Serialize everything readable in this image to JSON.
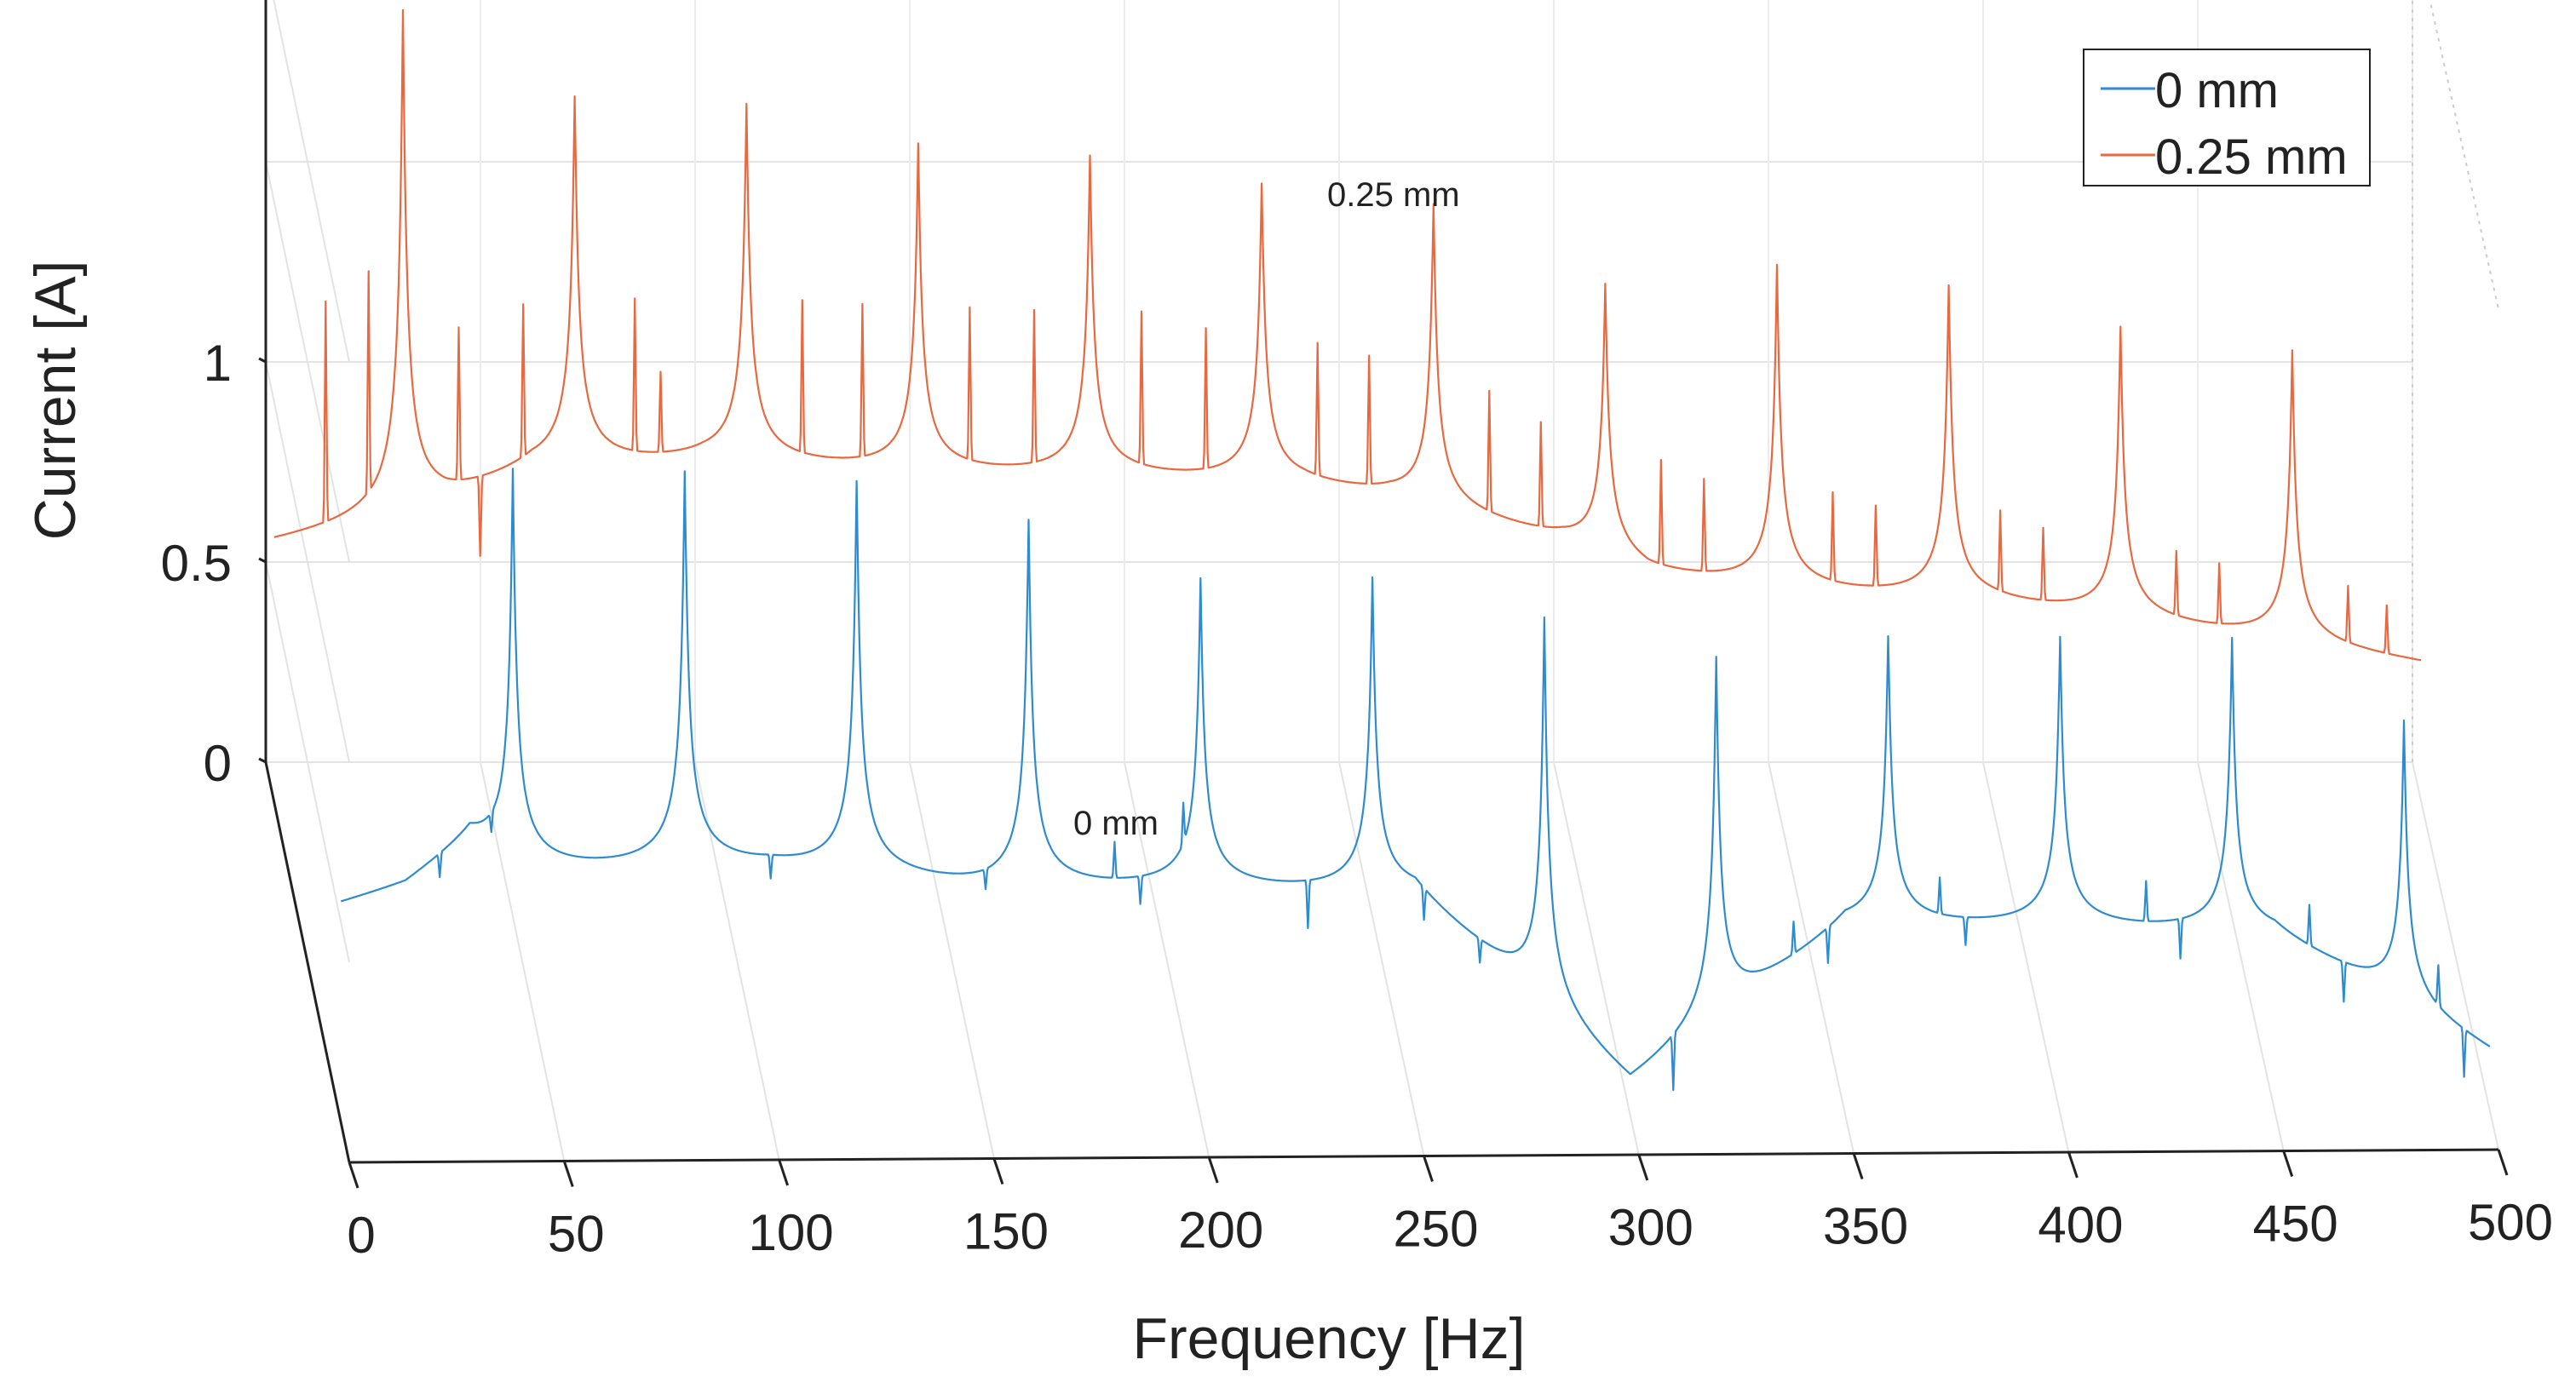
{
  "chart_data": {
    "type": "line",
    "view": "3d-waterfall",
    "title": "",
    "xlabel": "Frequency [Hz]",
    "ylabel": "Current [A]",
    "xlim": [
      0,
      500
    ],
    "x_ticks": [
      "0",
      "50",
      "100",
      "150",
      "200",
      "250",
      "300",
      "350",
      "400",
      "450",
      "500"
    ],
    "y_ticks": [
      "0",
      "0.5",
      "1"
    ],
    "y_ticks_top": {
      "base": "10",
      "exp": "0"
    },
    "legend": {
      "position": "top-right",
      "entries": [
        "0 mm",
        "0.25 mm"
      ]
    },
    "grid": true,
    "annotations": [
      "0.25 mm",
      "0 mm"
    ],
    "series": [
      {
        "name": "0 mm",
        "color": "#2e8bd0",
        "label": "0 mm",
        "baseline": [
          [
            0,
            0.52
          ],
          [
            15,
            0.56
          ],
          [
            30,
            0.66
          ],
          [
            40,
            0.58
          ],
          [
            100,
            0.58
          ],
          [
            150,
            0.52
          ],
          [
            200,
            0.52
          ],
          [
            250,
            0.5
          ],
          [
            300,
            0.02
          ],
          [
            350,
            0.42
          ],
          [
            400,
            0.42
          ],
          [
            450,
            0.4
          ],
          [
            500,
            0.12
          ]
        ],
        "peaks": [
          [
            40,
            1.6
          ],
          [
            80,
            1.58
          ],
          [
            120,
            1.55
          ],
          [
            160,
            1.45
          ],
          [
            200,
            1.3
          ],
          [
            240,
            1.3
          ],
          [
            280,
            1.2
          ],
          [
            320,
            1.1
          ],
          [
            360,
            1.15
          ],
          [
            400,
            1.15
          ],
          [
            440,
            1.15
          ],
          [
            480,
            0.95
          ]
        ],
        "spikes": [
          [
            23,
            -0.06
          ],
          [
            35,
            -0.05
          ],
          [
            100,
            -0.06
          ],
          [
            150,
            -0.05
          ],
          [
            180,
            0.09
          ],
          [
            186,
            -0.07
          ],
          [
            196,
            0.1
          ],
          [
            225,
            -0.12
          ],
          [
            252,
            -0.08
          ],
          [
            265,
            -0.06
          ],
          [
            310,
            -0.14
          ],
          [
            338,
            0.08
          ],
          [
            346,
            -0.09
          ],
          [
            372,
            0.09
          ],
          [
            378,
            -0.07
          ],
          [
            420,
            0.1
          ],
          [
            428,
            -0.1
          ],
          [
            458,
            0.1
          ],
          [
            466,
            -0.1
          ],
          [
            488,
            0.1
          ],
          [
            494,
            -0.12
          ]
        ]
      },
      {
        "name": "0.25 mm",
        "color": "#e8683f",
        "label": "0.25 mm",
        "baseline": [
          [
            0,
            0.62
          ],
          [
            25,
            0.66
          ],
          [
            40,
            0.7
          ],
          [
            60,
            0.78
          ],
          [
            100,
            0.8
          ],
          [
            150,
            0.77
          ],
          [
            200,
            0.76
          ],
          [
            240,
            0.74
          ],
          [
            260,
            0.71
          ],
          [
            300,
            0.6
          ],
          [
            320,
            0.52
          ],
          [
            350,
            0.48
          ],
          [
            400,
            0.45
          ],
          [
            440,
            0.4
          ],
          [
            470,
            0.36
          ],
          [
            500,
            0.32
          ]
        ],
        "peaks": [
          [
            30,
            1.95
          ],
          [
            70,
            1.72
          ],
          [
            110,
            1.7
          ],
          [
            150,
            1.6
          ],
          [
            190,
            1.57
          ],
          [
            230,
            1.5
          ],
          [
            270,
            1.45
          ],
          [
            310,
            1.25
          ],
          [
            350,
            1.3
          ],
          [
            390,
            1.25
          ],
          [
            430,
            1.15
          ],
          [
            470,
            1.1
          ]
        ],
        "spikes": [
          [
            12,
            0.55
          ],
          [
            22,
            0.55
          ],
          [
            43,
            0.38
          ],
          [
            48,
            -0.2
          ],
          [
            58,
            0.38
          ],
          [
            84,
            0.38
          ],
          [
            90,
            0.2
          ],
          [
            123,
            0.38
          ],
          [
            137,
            0.38
          ],
          [
            162,
            0.38
          ],
          [
            177,
            0.38
          ],
          [
            202,
            0.38
          ],
          [
            217,
            0.35
          ],
          [
            243,
            0.33
          ],
          [
            255,
            0.32
          ],
          [
            283,
            0.3
          ],
          [
            295,
            0.26
          ],
          [
            323,
            0.26
          ],
          [
            333,
            0.23
          ],
          [
            363,
            0.22
          ],
          [
            373,
            0.2
          ],
          [
            402,
            0.2
          ],
          [
            412,
            0.18
          ],
          [
            443,
            0.16
          ],
          [
            453,
            0.15
          ],
          [
            483,
            0.14
          ],
          [
            492,
            0.12
          ]
        ]
      }
    ]
  }
}
